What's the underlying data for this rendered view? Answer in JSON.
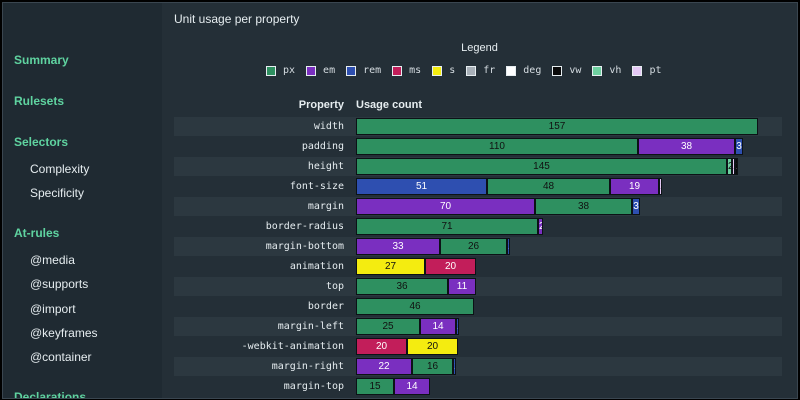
{
  "sidebar": {
    "sections": [
      {
        "label": "Summary",
        "items": []
      },
      {
        "label": "Rulesets",
        "items": []
      },
      {
        "label": "Selectors",
        "items": [
          "Complexity",
          "Specificity"
        ]
      },
      {
        "label": "At-rules",
        "items": [
          "@media",
          "@supports",
          "@import",
          "@keyframes",
          "@container"
        ]
      },
      {
        "label": "Declarations",
        "items": []
      }
    ]
  },
  "main": {
    "title": "Unit usage per property",
    "legend_title": "Legend",
    "column_property": "Property",
    "column_usage": "Usage count"
  },
  "units": [
    {
      "name": "px",
      "color": "#2e9060"
    },
    {
      "name": "em",
      "color": "#7a2fc0"
    },
    {
      "name": "rem",
      "color": "#2e4fb0"
    },
    {
      "name": "ms",
      "color": "#c21e5a"
    },
    {
      "name": "s",
      "color": "#f4ec10"
    },
    {
      "name": "fr",
      "color": "#a8b0b8"
    },
    {
      "name": "deg",
      "color": "#ffffff"
    },
    {
      "name": "vw",
      "color": "#0a0a0a"
    },
    {
      "name": "vh",
      "color": "#6fd0a0"
    },
    {
      "name": "pt",
      "color": "#e4c8f4"
    }
  ],
  "chart_data": {
    "type": "bar",
    "stacked": true,
    "orientation": "horizontal",
    "title": "Unit usage per property",
    "xlabel": "Usage count",
    "ylabel": "Property",
    "xlim": [
      0,
      157
    ],
    "rows": [
      {
        "property": "width",
        "segments": [
          {
            "unit": "px",
            "value": 157
          }
        ]
      },
      {
        "property": "padding",
        "segments": [
          {
            "unit": "px",
            "value": 110
          },
          {
            "unit": "em",
            "value": 38
          },
          {
            "unit": "rem",
            "value": 3
          }
        ]
      },
      {
        "property": "height",
        "segments": [
          {
            "unit": "px",
            "value": 145
          },
          {
            "unit": "vh",
            "value": 2
          },
          {
            "unit": "pt",
            "value": 1
          },
          {
            "unit": "vw",
            "value": 1
          }
        ]
      },
      {
        "property": "font-size",
        "segments": [
          {
            "unit": "rem",
            "value": 51
          },
          {
            "unit": "px",
            "value": 48
          },
          {
            "unit": "em",
            "value": 19
          },
          {
            "unit": "pt",
            "value": 1
          }
        ]
      },
      {
        "property": "margin",
        "segments": [
          {
            "unit": "em",
            "value": 70
          },
          {
            "unit": "px",
            "value": 38
          },
          {
            "unit": "rem",
            "value": 3
          }
        ]
      },
      {
        "property": "border-radius",
        "segments": [
          {
            "unit": "px",
            "value": 71
          },
          {
            "unit": "em",
            "value": 2
          }
        ]
      },
      {
        "property": "margin-bottom",
        "segments": [
          {
            "unit": "em",
            "value": 33
          },
          {
            "unit": "px",
            "value": 26
          },
          {
            "unit": "rem",
            "value": 1
          }
        ]
      },
      {
        "property": "animation",
        "segments": [
          {
            "unit": "s",
            "value": 27
          },
          {
            "unit": "ms",
            "value": 20
          }
        ]
      },
      {
        "property": "top",
        "segments": [
          {
            "unit": "px",
            "value": 36
          },
          {
            "unit": "em",
            "value": 11
          }
        ]
      },
      {
        "property": "border",
        "segments": [
          {
            "unit": "px",
            "value": 46
          }
        ]
      },
      {
        "property": "margin-left",
        "segments": [
          {
            "unit": "px",
            "value": 25
          },
          {
            "unit": "em",
            "value": 14
          },
          {
            "unit": "rem",
            "value": 1
          }
        ]
      },
      {
        "property": "-webkit-animation",
        "segments": [
          {
            "unit": "ms",
            "value": 20
          },
          {
            "unit": "s",
            "value": 20
          }
        ]
      },
      {
        "property": "margin-right",
        "segments": [
          {
            "unit": "em",
            "value": 22
          },
          {
            "unit": "px",
            "value": 16
          },
          {
            "unit": "rem",
            "value": 1
          }
        ]
      },
      {
        "property": "margin-top",
        "segments": [
          {
            "unit": "px",
            "value": 15
          },
          {
            "unit": "em",
            "value": 14
          }
        ]
      }
    ]
  }
}
